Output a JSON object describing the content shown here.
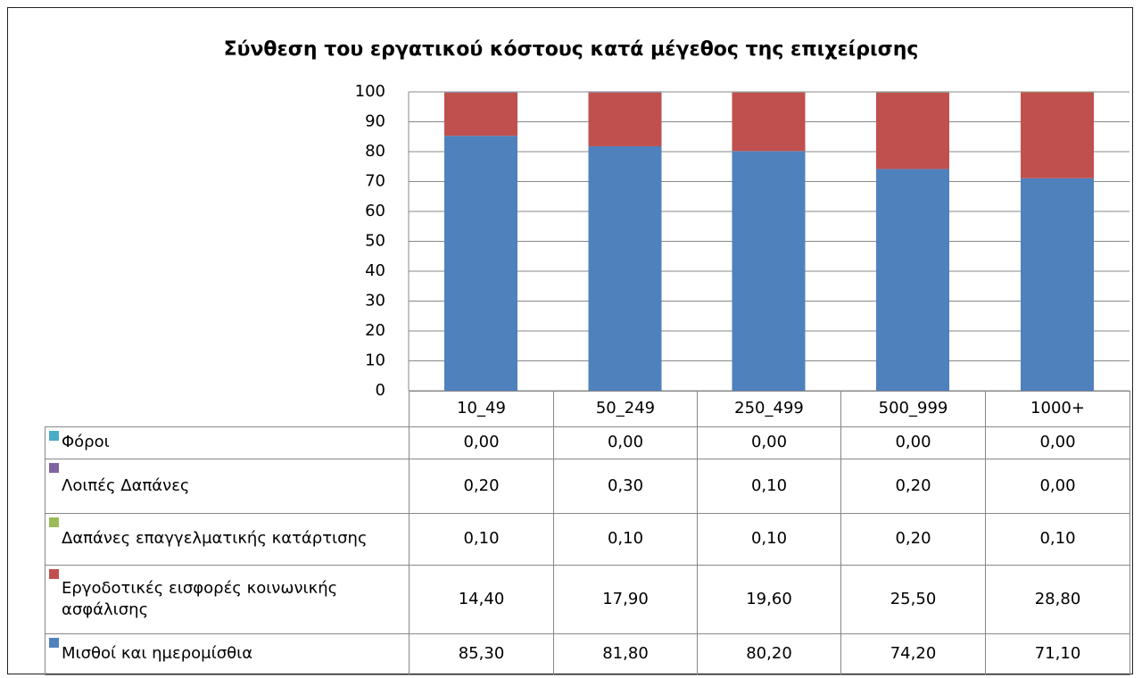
{
  "chart_data": {
    "type": "stacked_bar",
    "title": "Σύνθεση του εργατικού κόστους κατά μέγεθος της επιχείρισης",
    "categories": [
      "10_49",
      "50_249",
      "250_499",
      "500_999",
      "1000+"
    ],
    "ylim": [
      0,
      100
    ],
    "yticks": [
      0,
      10,
      20,
      30,
      40,
      50,
      60,
      70,
      80,
      90,
      100
    ],
    "grid": true,
    "series": [
      {
        "name": "Φόροι",
        "color": "#4bacc6",
        "values": [
          0,
          0,
          0,
          0,
          0
        ],
        "value_labels": [
          "0,00",
          "0,00",
          "0,00",
          "0,00",
          "0,00"
        ]
      },
      {
        "name": "Λοιπές Δαπάνες",
        "color": "#8064a2",
        "values": [
          0.2,
          0.3,
          0.1,
          0.2,
          0
        ],
        "value_labels": [
          "0,20",
          "0,30",
          "0,10",
          "0,20",
          "0,00"
        ]
      },
      {
        "name": "Δαπάνες επαγγελματικής κατάρτισης",
        "color": "#9bbb59",
        "values": [
          0.1,
          0.1,
          0.1,
          0.2,
          0.1
        ],
        "value_labels": [
          "0,10",
          "0,10",
          "0,10",
          "0,20",
          "0,10"
        ]
      },
      {
        "name": "Εργοδοτικές εισφορές κοινωνικής ασφάλισης",
        "color": "#c0504d",
        "values": [
          14.4,
          17.9,
          19.6,
          25.5,
          28.8
        ],
        "value_labels": [
          "14,40",
          "17,90",
          "19,60",
          "25,50",
          "28,80"
        ]
      },
      {
        "name": "Μισθοί και ημερομίσθια",
        "color": "#4f81bd",
        "values": [
          85.3,
          81.8,
          80.2,
          74.2,
          71.1
        ],
        "value_labels": [
          "85,30",
          "81,80",
          "80,20",
          "74,20",
          "71,10"
        ]
      }
    ]
  }
}
